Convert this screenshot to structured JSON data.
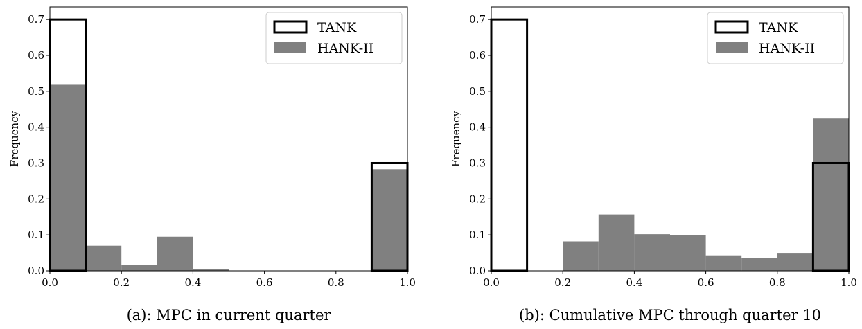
{
  "chart_data": [
    {
      "type": "bar",
      "caption": "(a): MPC in current quarter",
      "ylabel": "Frequency",
      "xlim": [
        0.0,
        1.0
      ],
      "ylim": [
        0.0,
        0.735
      ],
      "xticks": [
        "0.0",
        "0.2",
        "0.4",
        "0.6",
        "0.8",
        "1.0"
      ],
      "yticks": [
        "0.0",
        "0.1",
        "0.2",
        "0.3",
        "0.4",
        "0.5",
        "0.6",
        "0.7"
      ],
      "bin_edges": [
        0.0,
        0.1,
        0.2,
        0.3,
        0.4,
        0.5,
        0.6,
        0.7,
        0.8,
        0.9,
        1.0
      ],
      "series": [
        {
          "name": "TANK",
          "style": "outline",
          "color": "#000000",
          "values": [
            0.7,
            0,
            0,
            0,
            0,
            0,
            0,
            0,
            0,
            0.3
          ]
        },
        {
          "name": "HANK-II",
          "style": "filled",
          "color": "#808080",
          "values": [
            0.52,
            0.07,
            0.017,
            0.095,
            0.004,
            0,
            0,
            0,
            0,
            0.283
          ]
        }
      ],
      "legend": "top-right",
      "grid": false
    },
    {
      "type": "bar",
      "caption": "(b): Cumulative MPC through quarter 10",
      "ylabel": "Frequency",
      "xlim": [
        0.0,
        1.0
      ],
      "ylim": [
        0.0,
        0.735
      ],
      "xticks": [
        "0.0",
        "0.2",
        "0.4",
        "0.6",
        "0.8",
        "1.0"
      ],
      "yticks": [
        "0.0",
        "0.1",
        "0.2",
        "0.3",
        "0.4",
        "0.5",
        "0.6",
        "0.7"
      ],
      "bin_edges": [
        0.0,
        0.1,
        0.2,
        0.3,
        0.4,
        0.5,
        0.6,
        0.7,
        0.8,
        0.9,
        1.0
      ],
      "series": [
        {
          "name": "TANK",
          "style": "outline",
          "color": "#000000",
          "values": [
            0.7,
            0,
            0,
            0,
            0,
            0,
            0,
            0,
            0,
            0.3
          ]
        },
        {
          "name": "HANK-II",
          "style": "filled",
          "color": "#808080",
          "values": [
            0,
            0,
            0.082,
            0.157,
            0.102,
            0.099,
            0.043,
            0.035,
            0.05,
            0.424
          ]
        }
      ],
      "legend": "top-right",
      "grid": false
    }
  ]
}
